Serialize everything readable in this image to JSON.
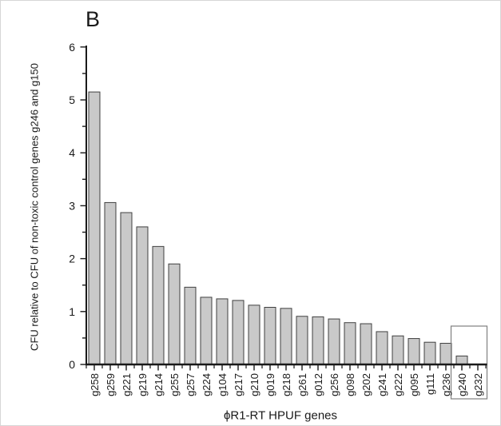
{
  "panel_label": "B",
  "chart_data": {
    "type": "bar",
    "title": "",
    "xlabel": "ϕR1-RT HPUF genes",
    "ylabel": "CFU relative to CFU of non-toxic control genes g246 and g150",
    "categories": [
      "g258",
      "g259",
      "g221",
      "g219",
      "g214",
      "g255",
      "g257",
      "g224",
      "g104",
      "g217",
      "g210",
      "g019",
      "g218",
      "g261",
      "g012",
      "g256",
      "g098",
      "g202",
      "g241",
      "g222",
      "g095",
      "g111",
      "g236",
      "g240",
      "g232"
    ],
    "values": [
      5.15,
      3.06,
      2.87,
      2.6,
      2.23,
      1.9,
      1.46,
      1.27,
      1.24,
      1.21,
      1.12,
      1.08,
      1.06,
      0.91,
      0.9,
      0.86,
      0.79,
      0.77,
      0.62,
      0.54,
      0.49,
      0.42,
      0.4,
      0.16,
      0
    ],
    "ylim": [
      0,
      6
    ],
    "ytick_step": 1,
    "ytick_minor_step": 0.5,
    "grid": false,
    "legend": null,
    "highlight_box_categories": [
      "g240",
      "g232"
    ],
    "colors": {
      "bar_fill": "#c9c9c9",
      "bar_stroke": "#404040",
      "axis": "#1a1a1a",
      "text": "#1a1a1a",
      "highlight_box": "#808080"
    }
  }
}
